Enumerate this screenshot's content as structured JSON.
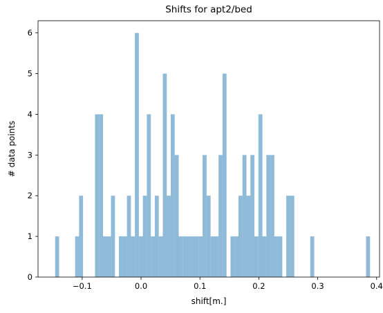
{
  "chart_data": {
    "type": "bar",
    "title": "Shifts for apt2/bed",
    "xlabel": "shift[m.]",
    "ylabel": "# data points",
    "xlim": [
      -0.175,
      0.405
    ],
    "ylim": [
      0,
      6.3
    ],
    "xticks": [
      -0.1,
      0.0,
      0.1,
      0.2,
      0.3,
      0.4
    ],
    "xtick_labels": [
      "−0.1",
      "0.0",
      "0.1",
      "0.2",
      "0.3",
      "0.4"
    ],
    "yticks": [
      0,
      1,
      2,
      3,
      4,
      5,
      6
    ],
    "ytick_labels": [
      "0",
      "1",
      "2",
      "3",
      "4",
      "5",
      "6"
    ],
    "grid": false,
    "bar_color": "#1f77b4",
    "bar_opacity": 0.5,
    "bin_width": 0.00677,
    "bins": [
      {
        "x": -0.1459,
        "value": 1
      },
      {
        "x": -0.112,
        "value": 1
      },
      {
        "x": -0.1053,
        "value": 2
      },
      {
        "x": -0.0782,
        "value": 4
      },
      {
        "x": -0.0714,
        "value": 4
      },
      {
        "x": -0.0646,
        "value": 1
      },
      {
        "x": -0.0579,
        "value": 1
      },
      {
        "x": -0.0511,
        "value": 2
      },
      {
        "x": -0.0443,
        "value": 0
      },
      {
        "x": -0.0376,
        "value": 1
      },
      {
        "x": -0.0308,
        "value": 1
      },
      {
        "x": -0.024,
        "value": 2
      },
      {
        "x": -0.0173,
        "value": 1
      },
      {
        "x": -0.0105,
        "value": 6
      },
      {
        "x": -0.0037,
        "value": 1
      },
      {
        "x": 0.003,
        "value": 2
      },
      {
        "x": 0.0098,
        "value": 4
      },
      {
        "x": 0.0166,
        "value": 1
      },
      {
        "x": 0.0233,
        "value": 2
      },
      {
        "x": 0.0301,
        "value": 1
      },
      {
        "x": 0.0369,
        "value": 5
      },
      {
        "x": 0.0436,
        "value": 2
      },
      {
        "x": 0.0504,
        "value": 4
      },
      {
        "x": 0.0572,
        "value": 3
      },
      {
        "x": 0.0639,
        "value": 1
      },
      {
        "x": 0.0707,
        "value": 1
      },
      {
        "x": 0.0775,
        "value": 1
      },
      {
        "x": 0.0842,
        "value": 1
      },
      {
        "x": 0.091,
        "value": 1
      },
      {
        "x": 0.0978,
        "value": 1
      },
      {
        "x": 0.1045,
        "value": 3
      },
      {
        "x": 0.1113,
        "value": 2
      },
      {
        "x": 0.1181,
        "value": 1
      },
      {
        "x": 0.1248,
        "value": 1
      },
      {
        "x": 0.1316,
        "value": 3
      },
      {
        "x": 0.1384,
        "value": 5
      },
      {
        "x": 0.1519,
        "value": 1
      },
      {
        "x": 0.1587,
        "value": 1
      },
      {
        "x": 0.1654,
        "value": 2
      },
      {
        "x": 0.1722,
        "value": 3
      },
      {
        "x": 0.179,
        "value": 2
      },
      {
        "x": 0.1857,
        "value": 3
      },
      {
        "x": 0.1925,
        "value": 1
      },
      {
        "x": 0.1993,
        "value": 4
      },
      {
        "x": 0.206,
        "value": 1
      },
      {
        "x": 0.2128,
        "value": 3
      },
      {
        "x": 0.2196,
        "value": 3
      },
      {
        "x": 0.2263,
        "value": 1
      },
      {
        "x": 0.2331,
        "value": 1
      },
      {
        "x": 0.2466,
        "value": 2
      },
      {
        "x": 0.2534,
        "value": 2
      },
      {
        "x": 0.2873,
        "value": 1
      },
      {
        "x": 0.3821,
        "value": 1
      }
    ]
  }
}
